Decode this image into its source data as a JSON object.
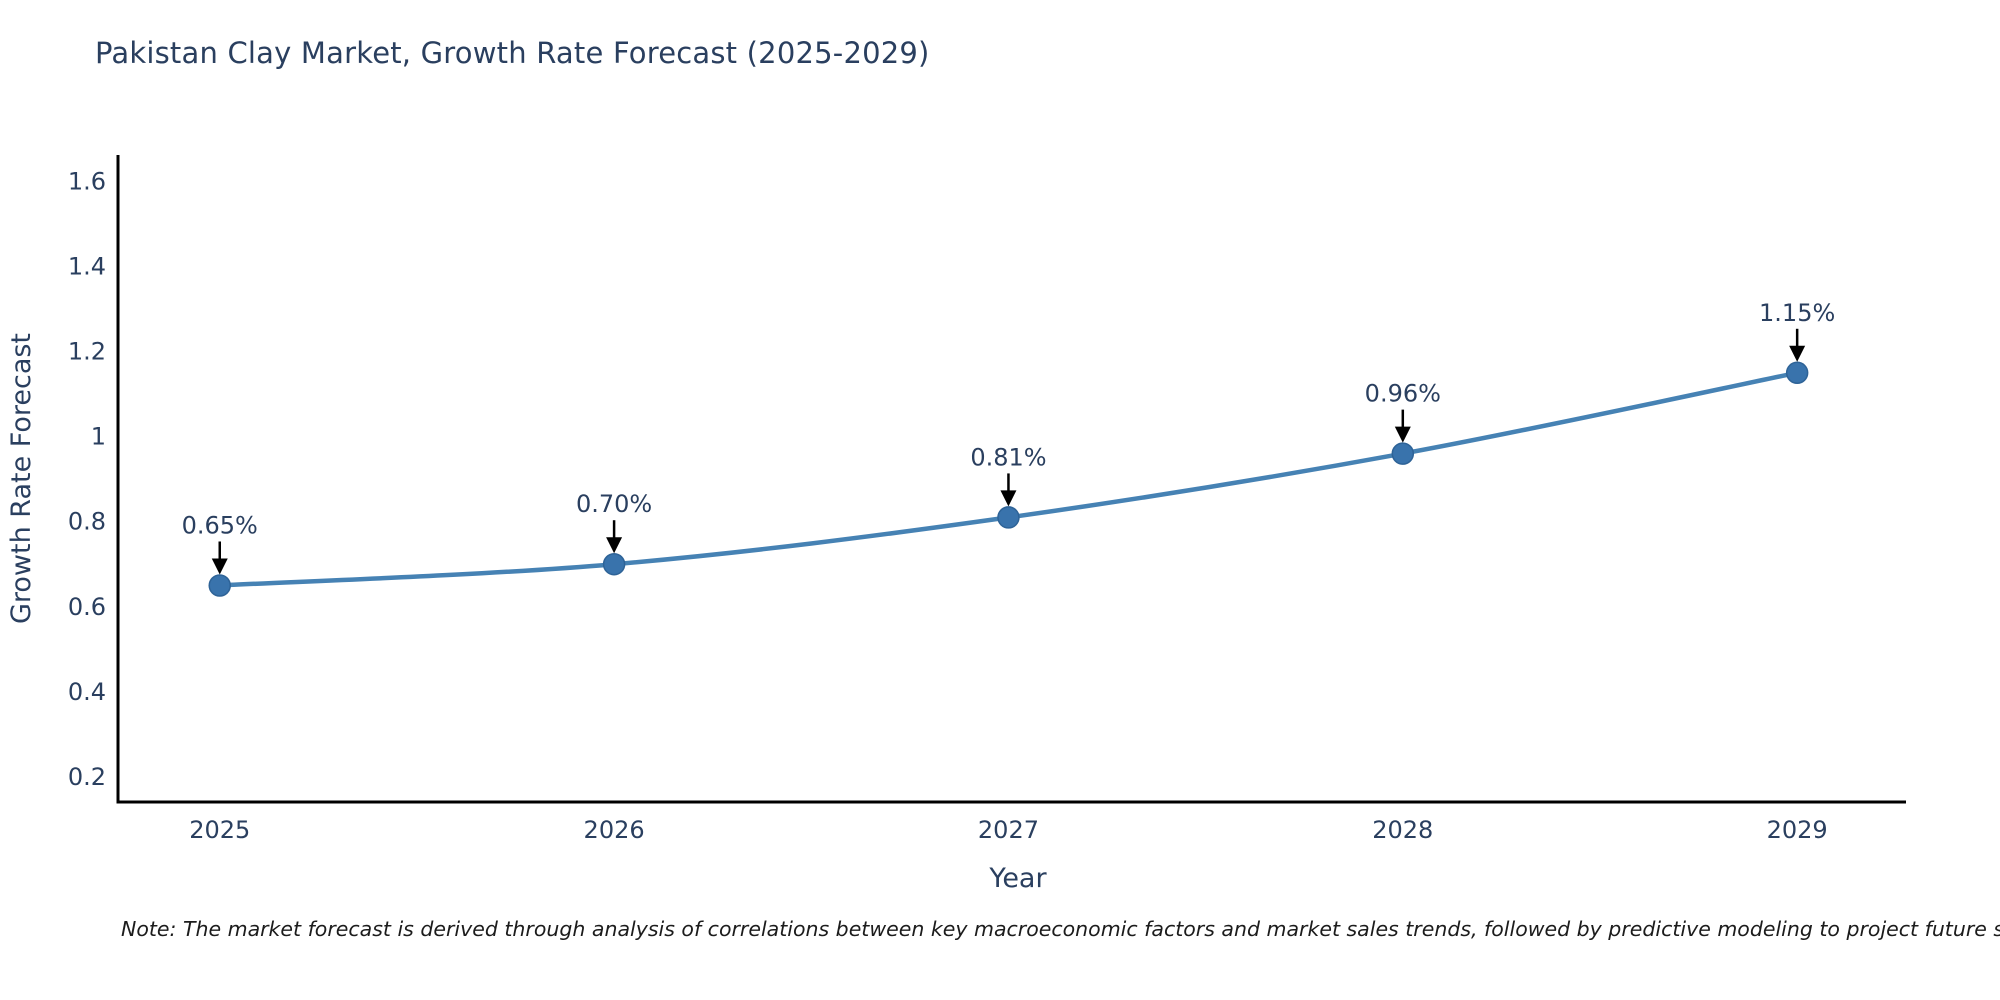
{
  "title": "Pakistan Clay Market, Growth Rate Forecast (2025-2029)",
  "note": "Note: The market forecast is derived through analysis of correlations between key macroeconomic factors and market sales trends, followed by predictive modeling to project future sales",
  "chart_data": {
    "type": "line",
    "title": "Pakistan Clay Market, Growth Rate Forecast (2025-2029)",
    "xlabel": "Year",
    "ylabel": "Growth Rate Forecast",
    "categories": [
      2025,
      2026,
      2027,
      2028,
      2029
    ],
    "values": [
      0.65,
      0.7,
      0.81,
      0.96,
      1.15
    ],
    "point_labels": [
      "0.65%",
      "0.70%",
      "0.81%",
      "0.96%",
      "1.15%"
    ],
    "ytick_labels": [
      "0.2",
      "0.4",
      "0.6",
      "0.8",
      "1",
      "1.2",
      "1.4",
      "1.6"
    ],
    "ytick_values": [
      0.2,
      0.4,
      0.6,
      0.8,
      1.0,
      1.2,
      1.4,
      1.6
    ],
    "ylim": [
      0.141,
      1.662
    ],
    "xlim": [
      2024.742,
      2029.276
    ],
    "grid": false,
    "legend": "none",
    "line_shape": "spline",
    "colors": {
      "line": "#4682b4",
      "marker": "#3973ac",
      "marker_edge": "#2e6397",
      "arrow": "#000000",
      "text": "#2a3f5f",
      "axis": "#000000"
    }
  }
}
